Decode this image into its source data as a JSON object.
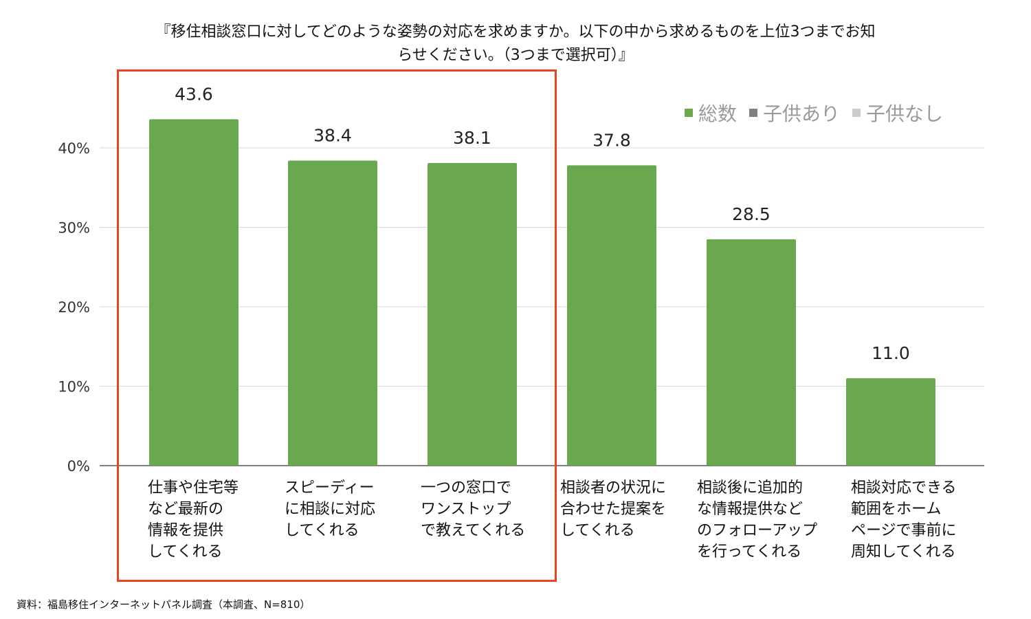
{
  "title_lines": [
    "『移住相談窓口に対してどのような姿勢の対応を求めますか。以下の中から求めるものを上位3つまでお知",
    "らせください。（3つまで選択可）』"
  ],
  "legend": [
    {
      "name": "総数",
      "color": "#6aa84f"
    },
    {
      "name": "子供あり",
      "color": "#7f7f7f"
    },
    {
      "name": "子供なし",
      "color": "#cccccc"
    }
  ],
  "source": "資料：福島移住インターネットパネル調査（本調査、N=810）",
  "highlight_color": "#e8451f",
  "chart_data": {
    "type": "bar",
    "categories": [
      "仕事や住宅等\nなど最新の\n情報を提供\nしてくれる",
      "スピーディー\nに相談に対応\nしてくれる",
      "一つの窓口で\nワンストップ\nで教えてくれる",
      "相談者の状況に\n合わせた提案を\nしてくれる",
      "相談後に追加的\nな情報提供など\nのフォローアップ\nを行ってくれる",
      "相談対応できる\n範囲をホーム\nページで事前に\n周知してくれる"
    ],
    "series": [
      {
        "name": "総数",
        "values": [
          43.6,
          38.4,
          38.1,
          37.8,
          28.5,
          11.0
        ],
        "color": "#6aa84f"
      }
    ],
    "data_labels": [
      "43.6",
      "38.4",
      "38.1",
      "37.8",
      "28.5",
      "11.0"
    ],
    "yticks": [
      "0%",
      "10%",
      "20%",
      "30%",
      "40%"
    ],
    "ylim": [
      0,
      50
    ],
    "grid": true,
    "legend_position": "top-right",
    "highlighted_categories": [
      0,
      1,
      2
    ]
  }
}
